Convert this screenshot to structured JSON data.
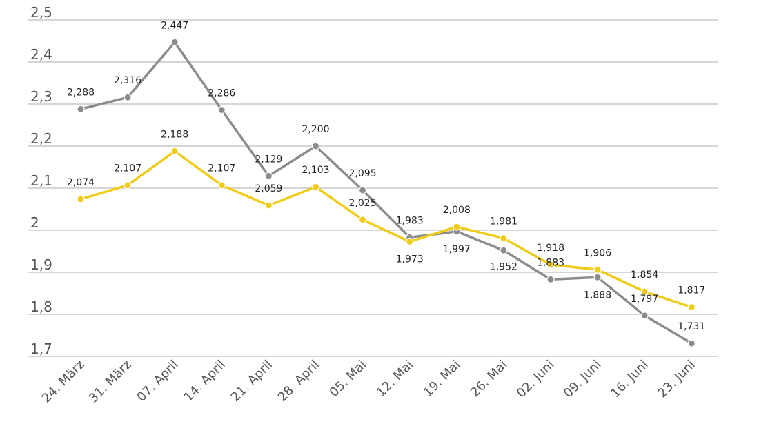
{
  "chart_data": {
    "type": "line",
    "title": "",
    "xlabel": "",
    "ylabel": "",
    "ylim": [
      1.7,
      2.5
    ],
    "grid": true,
    "legend": "none",
    "y_ticks": [
      "2,5",
      "2,4",
      "2,3",
      "2,2",
      "2,1",
      "2",
      "1,9",
      "1,8",
      "1,7"
    ],
    "categories": [
      "24. März",
      "31. März",
      "07. April",
      "14. April",
      "21. April",
      "28. April",
      "05. Mai",
      "12. Mai",
      "19. Mai",
      "26. Mai",
      "02. Juni",
      "09. Juni",
      "16. Juni",
      "23. Juni"
    ],
    "series": [
      {
        "color": "#8c8c8c",
        "values": [
          2.288,
          2.316,
          2.447,
          2.286,
          2.129,
          2.2,
          2.095,
          1.983,
          1.997,
          1.952,
          1.883,
          1.888,
          1.797,
          1.731
        ],
        "labels": [
          "2,288",
          "2,316",
          "2,447",
          "2,286",
          "2,129",
          "2,200",
          "2,095",
          "1,983",
          "1,997",
          "1,952",
          "1,883",
          "1,888",
          "1,797",
          "1,731"
        ]
      },
      {
        "color": "#f0cc1a",
        "values": [
          2.074,
          2.107,
          2.188,
          2.107,
          2.059,
          2.103,
          2.025,
          1.973,
          2.008,
          1.981,
          1.918,
          1.906,
          1.854,
          1.817
        ],
        "labels": [
          "2,074",
          "2,107",
          "2,188",
          "2,107",
          "2,059",
          "2,103",
          "2,025",
          "1,973",
          "2,008",
          "1,981",
          "1,918",
          "1,906",
          "1,854",
          "1,817"
        ]
      }
    ]
  }
}
